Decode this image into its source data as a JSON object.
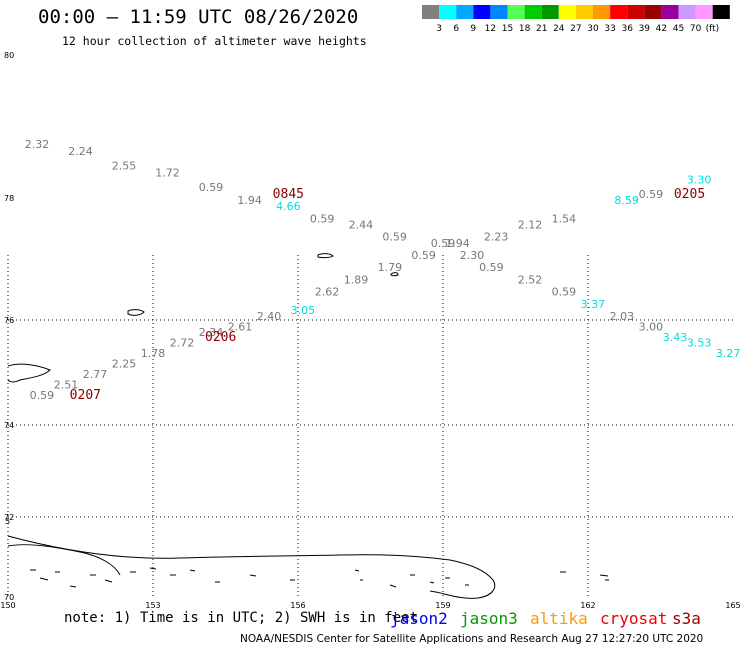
{
  "header": {
    "title": "00:00 – 11:59 UTC 08/26/2020",
    "subtitle": "12 hour collection of altimeter wave heights"
  },
  "scale": {
    "colors": [
      "#808080",
      "#00ffff",
      "#00aaff",
      "#0000ff",
      "#0088ff",
      "#55ff55",
      "#00cc00",
      "#009900",
      "#ffff00",
      "#ffcc00",
      "#ff9900",
      "#ff0000",
      "#cc0000",
      "#990000",
      "#990099",
      "#cc99ff",
      "#ff99ff",
      "#000000"
    ],
    "labels": [
      "3",
      "6",
      "9",
      "12",
      "15",
      "18",
      "21",
      "24",
      "27",
      "30",
      "33",
      "36",
      "39",
      "42",
      "45",
      "70"
    ],
    "unit": "(ft)"
  },
  "map": {
    "lon_ticks": [
      "150",
      "153",
      "156",
      "159",
      "162",
      "165"
    ],
    "lat_ticks": [
      "70",
      "72",
      "74",
      "76",
      "78",
      "80"
    ],
    "lat_extra": [
      "5"
    ]
  },
  "observations": [
    {
      "value": "2.32",
      "lon": 150.6,
      "lat": 78.7,
      "color": "#777777"
    },
    {
      "value": "2.24",
      "lon": 151.5,
      "lat": 78.6,
      "color": "#777777"
    },
    {
      "value": "2.55",
      "lon": 152.4,
      "lat": 78.4,
      "color": "#777777"
    },
    {
      "value": "1.72",
      "lon": 153.3,
      "lat": 78.3,
      "color": "#777777"
    },
    {
      "value": "0.59",
      "lon": 154.2,
      "lat": 78.1,
      "color": "#777777"
    },
    {
      "value": "1.94",
      "lon": 155.0,
      "lat": 77.9,
      "color": "#777777"
    },
    {
      "value": "4.66",
      "lon": 155.8,
      "lat": 77.8,
      "color": "#00dddd"
    },
    {
      "value": "0.59",
      "lon": 156.5,
      "lat": 77.6,
      "color": "#777777"
    },
    {
      "value": "2.44",
      "lon": 157.3,
      "lat": 77.5,
      "color": "#777777"
    },
    {
      "value": "0.59",
      "lon": 158.0,
      "lat": 77.3,
      "color": "#777777"
    },
    {
      "value": "0.59",
      "lon": 159.0,
      "lat": 77.2,
      "color": "#777777"
    },
    {
      "value": "1.94",
      "lon": 159.3,
      "lat": 77.2,
      "color": "#777777"
    },
    {
      "value": "0.59",
      "lon": 158.6,
      "lat": 77.0,
      "color": "#777777"
    },
    {
      "value": "2.30",
      "lon": 159.6,
      "lat": 77.0,
      "color": "#777777"
    },
    {
      "value": "2.23",
      "lon": 160.1,
      "lat": 77.3,
      "color": "#777777"
    },
    {
      "value": "2.12",
      "lon": 160.8,
      "lat": 77.5,
      "color": "#777777"
    },
    {
      "value": "1.54",
      "lon": 161.5,
      "lat": 77.6,
      "color": "#777777"
    },
    {
      "value": "1.79",
      "lon": 157.9,
      "lat": 76.8,
      "color": "#777777"
    },
    {
      "value": "1.89",
      "lon": 157.2,
      "lat": 76.6,
      "color": "#777777"
    },
    {
      "value": "2.62",
      "lon": 156.6,
      "lat": 76.4,
      "color": "#777777"
    },
    {
      "value": "0.59",
      "lon": 160.0,
      "lat": 76.8,
      "color": "#777777"
    },
    {
      "value": "2.52",
      "lon": 160.8,
      "lat": 76.6,
      "color": "#777777"
    },
    {
      "value": "0.59",
      "lon": 161.5,
      "lat": 76.4,
      "color": "#777777"
    },
    {
      "value": "3.37",
      "lon": 162.1,
      "lat": 76.2,
      "color": "#00dddd"
    },
    {
      "value": "2.03",
      "lon": 162.7,
      "lat": 76.0,
      "color": "#777777"
    },
    {
      "value": "3.00",
      "lon": 163.3,
      "lat": 75.8,
      "color": "#777777"
    },
    {
      "value": "3.43",
      "lon": 163.8,
      "lat": 75.6,
      "color": "#00dddd"
    },
    {
      "value": "3.53",
      "lon": 164.3,
      "lat": 75.5,
      "color": "#00dddd"
    },
    {
      "value": "3.27",
      "lon": 164.9,
      "lat": 75.3,
      "color": "#00dddd"
    },
    {
      "value": "3.05",
      "lon": 156.1,
      "lat": 76.1,
      "color": "#00dddd"
    },
    {
      "value": "2.40",
      "lon": 155.4,
      "lat": 76.0,
      "color": "#777777"
    },
    {
      "value": "2.61",
      "lon": 154.8,
      "lat": 75.8,
      "color": "#777777"
    },
    {
      "value": "2.34",
      "lon": 154.2,
      "lat": 75.7,
      "color": "#777777"
    },
    {
      "value": "2.72",
      "lon": 153.6,
      "lat": 75.5,
      "color": "#777777"
    },
    {
      "value": "1.78",
      "lon": 153.0,
      "lat": 75.3,
      "color": "#777777"
    },
    {
      "value": "2.25",
      "lon": 152.4,
      "lat": 75.1,
      "color": "#777777"
    },
    {
      "value": "2.77",
      "lon": 151.8,
      "lat": 74.9,
      "color": "#777777"
    },
    {
      "value": "2.51",
      "lon": 151.2,
      "lat": 74.7,
      "color": "#777777"
    },
    {
      "value": "0.59",
      "lon": 150.7,
      "lat": 74.5,
      "color": "#777777"
    },
    {
      "value": "8.59",
      "lon": 162.8,
      "lat": 77.9,
      "color": "#00dddd"
    },
    {
      "value": "0.59",
      "lon": 163.3,
      "lat": 78.0,
      "color": "#777777"
    },
    {
      "value": "3.30",
      "lon": 164.3,
      "lat": 78.2,
      "color": "#00dddd"
    }
  ],
  "times": [
    {
      "value": "0845",
      "lon": 155.8,
      "lat": 78.0
    },
    {
      "value": "0206",
      "lon": 154.4,
      "lat": 75.6
    },
    {
      "value": "0207",
      "lon": 151.6,
      "lat": 74.5
    },
    {
      "value": "0205",
      "lon": 164.1,
      "lat": 78.0
    }
  ],
  "footer": {
    "note": "note: 1) Time is in UTC; 2) SWH is in feet",
    "satellites": [
      {
        "name": "jason2",
        "color": "#0000ee"
      },
      {
        "name": "jason3",
        "color": "#009900"
      },
      {
        "name": "altika",
        "color": "#ff9900"
      },
      {
        "name": "cryosat",
        "color": "#ee0000"
      },
      {
        "name": "s3a",
        "color": "#990000"
      }
    ],
    "credit": "NOAA/NESDIS Center for Satellite Applications and Research   Aug 27 12:27:20 UTC 2020"
  }
}
